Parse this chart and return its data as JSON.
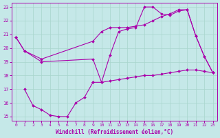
{
  "xlabel": "Windchill (Refroidissement éolien,°C)",
  "xlim": [
    -0.5,
    23.5
  ],
  "ylim": [
    14.7,
    23.3
  ],
  "yticks": [
    15,
    16,
    17,
    18,
    19,
    20,
    21,
    22,
    23
  ],
  "xticks": [
    0,
    1,
    2,
    3,
    4,
    5,
    6,
    7,
    8,
    9,
    10,
    11,
    12,
    13,
    14,
    15,
    16,
    17,
    18,
    19,
    20,
    21,
    22,
    23
  ],
  "bg_color": "#c5e8e8",
  "grid_color": "#a8d5cc",
  "line_color": "#aa00aa",
  "lines": [
    {
      "x": [
        0,
        1,
        3,
        9,
        10,
        11,
        12,
        13,
        14,
        15,
        16,
        17,
        18,
        19,
        20,
        21,
        22,
        23
      ],
      "y": [
        20.8,
        19.8,
        19.2,
        20.5,
        21.2,
        21.5,
        21.5,
        21.5,
        21.6,
        21.7,
        22.0,
        22.3,
        22.5,
        22.8,
        22.8,
        20.9,
        19.4,
        18.2
      ]
    },
    {
      "x": [
        0,
        1,
        3,
        9,
        10,
        11,
        12,
        13,
        14,
        15,
        16,
        17,
        18,
        19,
        20,
        21,
        22,
        23
      ],
      "y": [
        20.8,
        19.8,
        19.0,
        19.2,
        17.5,
        19.5,
        21.2,
        21.4,
        21.5,
        23.0,
        23.0,
        22.5,
        22.4,
        22.7,
        22.8,
        20.9,
        19.4,
        18.2
      ]
    },
    {
      "x": [
        9,
        10,
        11,
        12,
        13,
        14,
        15,
        16,
        17,
        18,
        19,
        20,
        21,
        22,
        23
      ],
      "y": [
        17.5,
        17.5,
        17.6,
        17.7,
        17.8,
        17.9,
        18.0,
        18.0,
        18.1,
        18.2,
        18.3,
        18.4,
        18.4,
        18.3,
        18.2
      ]
    },
    {
      "x": [
        1,
        2,
        3,
        4,
        5,
        6,
        7,
        8,
        9
      ],
      "y": [
        17.0,
        15.8,
        15.5,
        15.1,
        15.0,
        15.0,
        16.0,
        16.4,
        17.5
      ]
    }
  ]
}
